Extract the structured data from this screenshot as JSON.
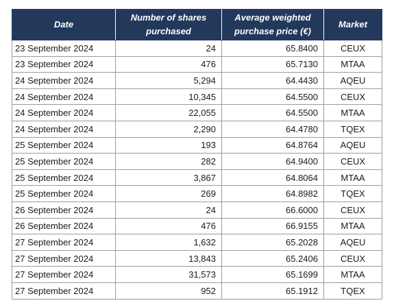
{
  "table": {
    "headers": {
      "date": "Date",
      "shares": "Number of shares purchased",
      "price": "Average weighted purchase price (€)",
      "market": "Market"
    },
    "rows": [
      {
        "date": "23 September 2024",
        "shares": "24",
        "price": "65.8400",
        "market": "CEUX"
      },
      {
        "date": "23 September 2024",
        "shares": "476",
        "price": "65.7130",
        "market": "MTAA"
      },
      {
        "date": "24 September 2024",
        "shares": "5,294",
        "price": "64.4430",
        "market": "AQEU"
      },
      {
        "date": "24 September 2024",
        "shares": "10,345",
        "price": "64.5500",
        "market": "CEUX"
      },
      {
        "date": "24 September 2024",
        "shares": "22,055",
        "price": "64.5500",
        "market": "MTAA"
      },
      {
        "date": "24 September 2024",
        "shares": "2,290",
        "price": "64.4780",
        "market": "TQEX"
      },
      {
        "date": "25 September 2024",
        "shares": "193",
        "price": "64.8764",
        "market": "AQEU"
      },
      {
        "date": "25 September 2024",
        "shares": "282",
        "price": "64.9400",
        "market": "CEUX"
      },
      {
        "date": "25 September 2024",
        "shares": "3,867",
        "price": "64.8064",
        "market": "MTAA"
      },
      {
        "date": "25 September 2024",
        "shares": "269",
        "price": "64.8982",
        "market": "TQEX"
      },
      {
        "date": "26 September 2024",
        "shares": "24",
        "price": "66.6000",
        "market": "CEUX"
      },
      {
        "date": "26 September 2024",
        "shares": "476",
        "price": "66.9155",
        "market": "MTAA"
      },
      {
        "date": "27 September 2024",
        "shares": "1,632",
        "price": "65.2028",
        "market": "AQEU"
      },
      {
        "date": "27 September 2024",
        "shares": "13,843",
        "price": "65.2406",
        "market": "CEUX"
      },
      {
        "date": "27 September 2024",
        "shares": "31,573",
        "price": "65.1699",
        "market": "MTAA"
      },
      {
        "date": "27 September 2024",
        "shares": "952",
        "price": "65.1912",
        "market": "TQEX"
      }
    ]
  },
  "colors": {
    "header_bg": "#22395c",
    "header_text": "#ffffff",
    "grid_line": "#9b9b9b"
  }
}
